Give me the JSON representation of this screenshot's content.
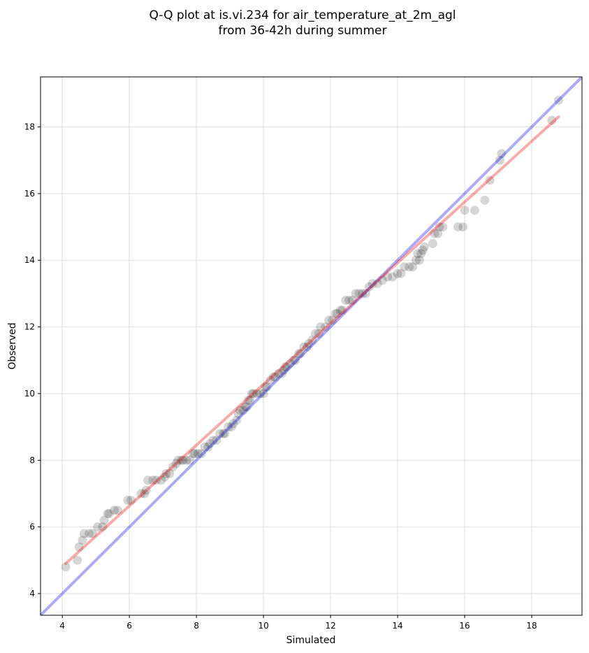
{
  "chart_data": {
    "type": "scatter",
    "title": [
      "Q-Q plot at is.vi.234 for air_temperature_at_2m_agl",
      "from 36-42h during summer"
    ],
    "xlabel": "Simulated",
    "ylabel": "Observed",
    "xlim": [
      3.35,
      19.5
    ],
    "ylim": [
      3.35,
      19.5
    ],
    "xticks": [
      4,
      6,
      8,
      10,
      12,
      14,
      16,
      18
    ],
    "yticks": [
      4,
      6,
      8,
      10,
      12,
      14,
      16,
      18
    ],
    "grid": true,
    "colors": {
      "points": "#000000",
      "identity": "#0000ee",
      "fit": "#ee0000",
      "grid": "#d9d9d9"
    },
    "series": [
      {
        "kind": "points",
        "x": [
          4.1,
          4.45,
          4.5,
          4.6,
          4.65,
          4.8,
          4.9,
          5.05,
          5.2,
          5.25,
          5.35,
          5.4,
          5.55,
          5.65,
          5.95,
          6.05,
          6.35,
          6.45,
          6.5,
          6.55,
          6.7,
          6.8,
          6.95,
          7.05,
          7.1,
          7.2,
          7.3,
          7.4,
          7.45,
          7.55,
          7.6,
          7.7,
          7.8,
          7.9,
          7.95,
          8.05,
          8.15,
          8.25,
          8.35,
          8.4,
          8.5,
          8.6,
          8.7,
          8.8,
          8.85,
          8.95,
          9.05,
          9.1,
          9.2,
          9.25,
          9.3,
          9.4,
          9.45,
          9.5,
          9.55,
          9.6,
          9.65,
          9.7,
          9.8,
          9.9,
          10.0,
          10.05,
          10.1,
          10.2,
          10.3,
          10.35,
          10.45,
          10.55,
          10.6,
          10.65,
          10.7,
          10.8,
          10.9,
          10.95,
          11.05,
          11.1,
          11.2,
          11.3,
          11.35,
          11.45,
          11.55,
          11.65,
          11.7,
          11.85,
          11.95,
          12.05,
          12.15,
          12.2,
          12.3,
          12.35,
          12.45,
          12.55,
          12.65,
          12.75,
          12.85,
          12.95,
          13.05,
          13.15,
          13.25,
          13.4,
          13.55,
          13.7,
          13.85,
          14.0,
          14.1,
          14.2,
          14.35,
          14.45,
          14.55,
          14.6,
          14.65,
          14.7,
          14.75,
          14.8,
          15.05,
          15.1,
          15.2,
          15.25,
          15.35,
          15.8,
          15.95,
          16.0,
          16.3,
          16.6,
          16.75,
          17.05,
          17.1,
          18.6,
          18.8
        ],
        "y": [
          4.8,
          5.0,
          5.4,
          5.6,
          5.8,
          5.8,
          5.8,
          6.0,
          6.0,
          6.2,
          6.4,
          6.4,
          6.5,
          6.5,
          6.8,
          6.8,
          7.0,
          7.0,
          7.1,
          7.4,
          7.4,
          7.4,
          7.4,
          7.5,
          7.6,
          7.6,
          7.8,
          7.9,
          8.0,
          8.0,
          8.0,
          8.0,
          8.0,
          8.2,
          8.2,
          8.2,
          8.2,
          8.4,
          8.4,
          8.5,
          8.6,
          8.6,
          8.8,
          8.8,
          8.8,
          9.0,
          9.0,
          9.1,
          9.2,
          9.4,
          9.5,
          9.5,
          9.6,
          9.6,
          9.8,
          9.8,
          10.0,
          10.0,
          10.0,
          10.0,
          10.0,
          10.2,
          10.2,
          10.4,
          10.5,
          10.5,
          10.6,
          10.6,
          10.7,
          10.8,
          10.8,
          10.9,
          11.0,
          11.0,
          11.2,
          11.2,
          11.4,
          11.4,
          11.5,
          11.6,
          11.8,
          11.8,
          12.0,
          12.0,
          12.2,
          12.2,
          12.4,
          12.4,
          12.5,
          12.5,
          12.8,
          12.8,
          12.8,
          13.0,
          13.0,
          13.0,
          13.0,
          13.2,
          13.3,
          13.3,
          13.4,
          13.5,
          13.5,
          13.6,
          13.6,
          13.8,
          13.8,
          13.8,
          14.0,
          14.2,
          14.0,
          14.2,
          14.3,
          14.4,
          14.5,
          14.8,
          14.8,
          15.0,
          15.0,
          15.0,
          15.0,
          15.5,
          15.5,
          15.8,
          16.4,
          17.0,
          17.2,
          18.2,
          18.8
        ]
      },
      {
        "kind": "line",
        "name": "",
        "x": [
          3.35,
          19.5
        ],
        "y": [
          3.35,
          19.5
        ],
        "color": "#0000ee"
      },
      {
        "kind": "line",
        "name": "",
        "x": [
          4.1,
          18.8
        ],
        "y": [
          4.9,
          18.3
        ],
        "color": "#ee0000"
      }
    ]
  }
}
